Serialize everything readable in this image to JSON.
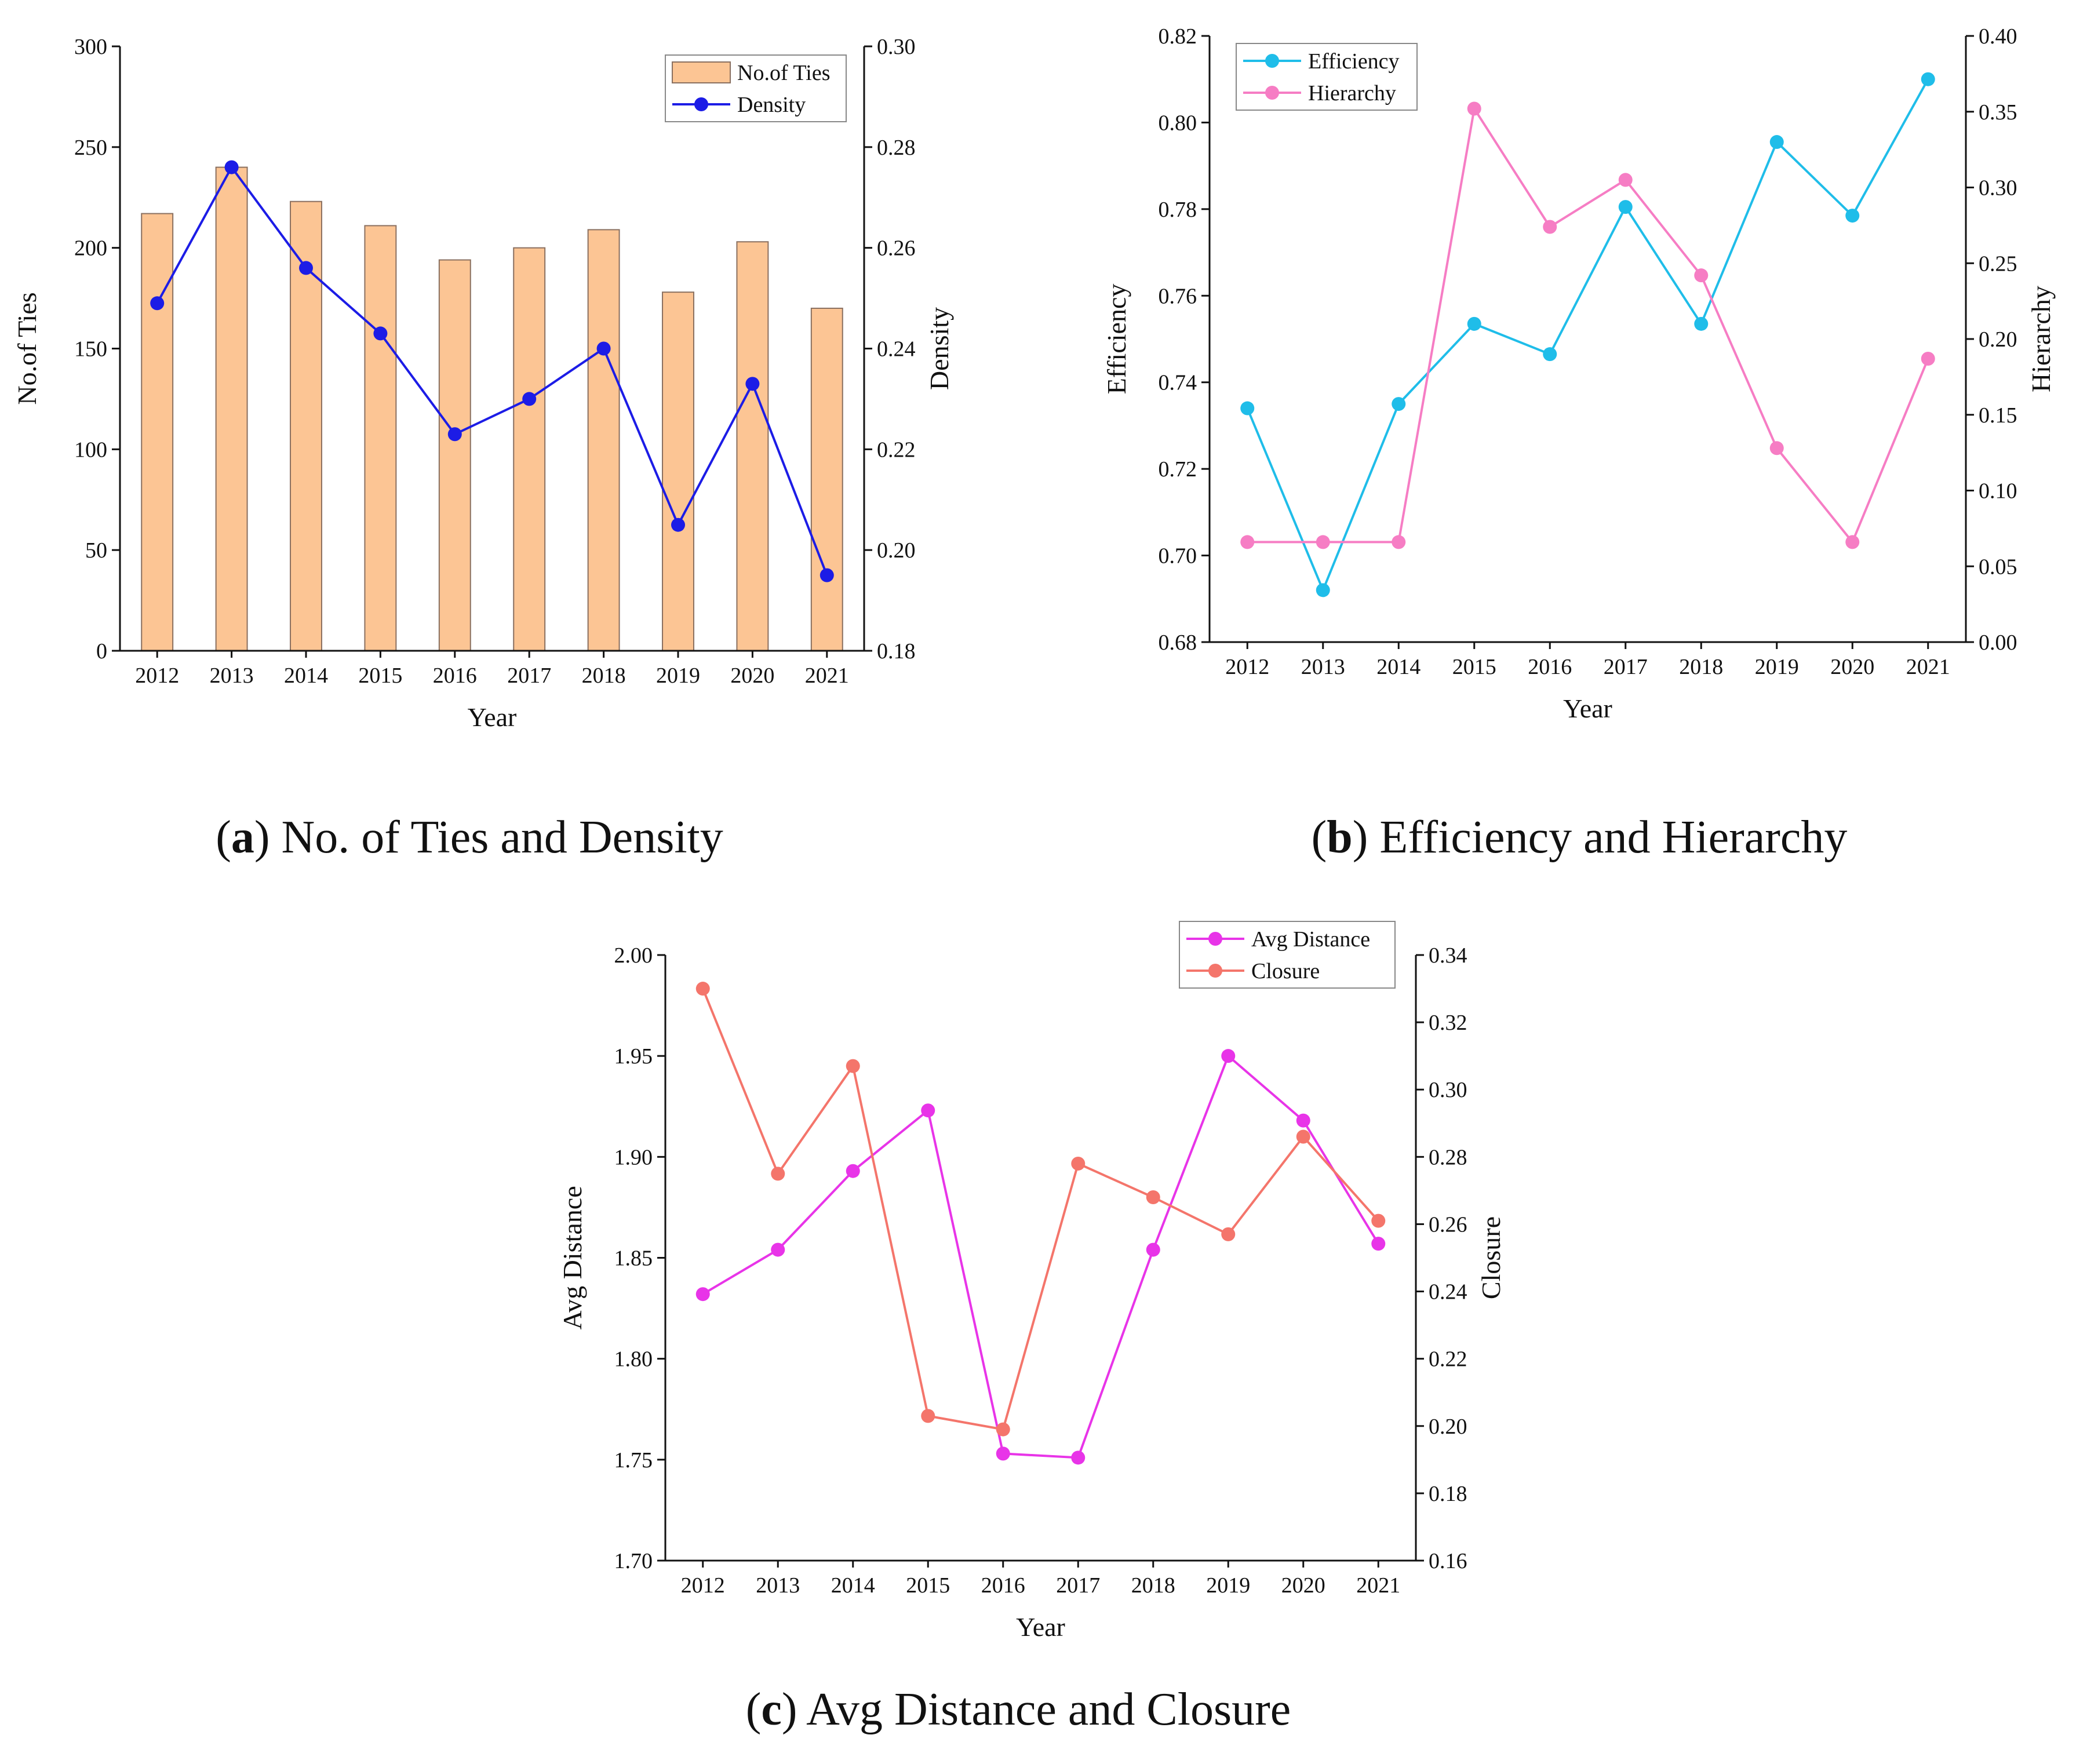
{
  "figure": {
    "captions": [
      {
        "letter": "a",
        "text": " No. of Ties and Density"
      },
      {
        "letter": "b",
        "text": " Efficiency and Hierarchy"
      },
      {
        "letter": "c",
        "text": " Avg Distance and Closure"
      }
    ]
  },
  "chart_data": [
    {
      "id": "a",
      "type": "bar+line",
      "xlabel": "Year",
      "ylabel_left": "No.of Ties",
      "ylabel_right": "Density",
      "categories": [
        "2012",
        "2013",
        "2014",
        "2015",
        "2016",
        "2017",
        "2018",
        "2019",
        "2020",
        "2021"
      ],
      "left_ylim": [
        0,
        300
      ],
      "left_ticks": [
        "0",
        "50",
        "100",
        "150",
        "200",
        "250",
        "300"
      ],
      "right_ylim": [
        0.18,
        0.3
      ],
      "right_ticks": [
        "0.18",
        "0.20",
        "0.22",
        "0.24",
        "0.26",
        "0.28",
        "0.30"
      ],
      "series": [
        {
          "name": "No.of Ties",
          "kind": "bar",
          "axis": "left",
          "color": "#fcc594",
          "edge": "#8a7060",
          "values": [
            217,
            240,
            223,
            211,
            194,
            200,
            209,
            178,
            203,
            170
          ]
        },
        {
          "name": "Density",
          "kind": "line",
          "axis": "right",
          "color": "#1c1ce6",
          "values": [
            0.249,
            0.276,
            0.256,
            0.243,
            0.223,
            0.23,
            0.24,
            0.205,
            0.233,
            0.195
          ]
        }
      ],
      "legend_position": "top-right"
    },
    {
      "id": "b",
      "type": "line",
      "xlabel": "Year",
      "ylabel_left": "Efficiency",
      "ylabel_right": "Hierarchy",
      "categories": [
        "2012",
        "2013",
        "2014",
        "2015",
        "2016",
        "2017",
        "2018",
        "2019",
        "2020",
        "2021"
      ],
      "left_ylim": [
        0.68,
        0.82
      ],
      "left_ticks": [
        "0.68",
        "0.70",
        "0.72",
        "0.74",
        "0.76",
        "0.78",
        "0.80",
        "0.82"
      ],
      "right_ylim": [
        0.0,
        0.4
      ],
      "right_ticks": [
        "0.00",
        "0.05",
        "0.10",
        "0.15",
        "0.20",
        "0.25",
        "0.30",
        "0.35",
        "0.40"
      ],
      "series": [
        {
          "name": "Efficiency",
          "kind": "line",
          "axis": "left",
          "color": "#1fbde9",
          "values": [
            0.734,
            0.692,
            0.735,
            0.7535,
            0.7465,
            0.7805,
            0.7535,
            0.7955,
            0.7785,
            0.81
          ]
        },
        {
          "name": "Hierarchy",
          "kind": "line",
          "axis": "right",
          "color": "#f67dc4",
          "values": [
            0.066,
            0.066,
            0.066,
            0.352,
            0.274,
            0.305,
            0.242,
            0.128,
            0.066,
            0.187
          ]
        }
      ],
      "legend_position": "top-left"
    },
    {
      "id": "c",
      "type": "line",
      "xlabel": "Year",
      "ylabel_left": "Avg Distance",
      "ylabel_right": "Closure",
      "categories": [
        "2012",
        "2013",
        "2014",
        "2015",
        "2016",
        "2017",
        "2018",
        "2019",
        "2020",
        "2021"
      ],
      "left_ylim": [
        1.7,
        2.0
      ],
      "left_ticks": [
        "1.70",
        "1.75",
        "1.80",
        "1.85",
        "1.90",
        "1.95",
        "2.00"
      ],
      "right_ylim": [
        0.16,
        0.34
      ],
      "right_ticks": [
        "0.16",
        "0.18",
        "0.20",
        "0.22",
        "0.24",
        "0.26",
        "0.28",
        "0.30",
        "0.32",
        "0.34"
      ],
      "series": [
        {
          "name": "Avg Distance",
          "kind": "line",
          "axis": "left",
          "color": "#e834e8",
          "values": [
            1.832,
            1.854,
            1.893,
            1.923,
            1.753,
            1.751,
            1.854,
            1.95,
            1.918,
            1.857
          ]
        },
        {
          "name": "Closure",
          "kind": "line",
          "axis": "right",
          "color": "#f4756b",
          "values": [
            0.33,
            0.275,
            0.307,
            0.203,
            0.199,
            0.278,
            0.268,
            0.257,
            0.286,
            0.261
          ]
        }
      ],
      "legend_position": "top-right"
    }
  ]
}
